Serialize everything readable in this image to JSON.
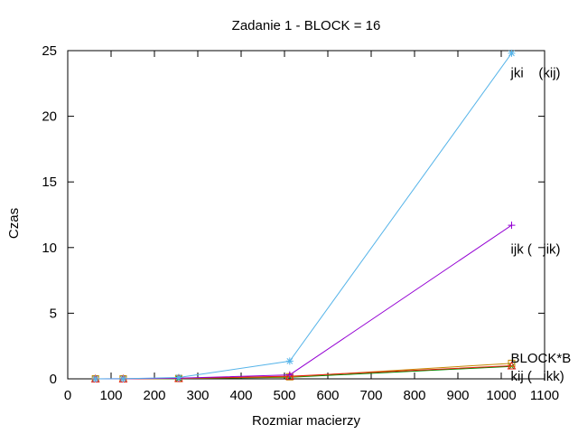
{
  "chart_data": {
    "type": "line",
    "title": "Zadanie 1 - BLOCK = 16",
    "xlabel": "Rozmiar macierzy",
    "ylabel": "Czas",
    "xlim": [
      0,
      1100
    ],
    "ylim": [
      0,
      25
    ],
    "xticks": [
      0,
      100,
      200,
      300,
      400,
      500,
      600,
      700,
      800,
      900,
      1000,
      1100
    ],
    "yticks": [
      0,
      5,
      10,
      15,
      20,
      25
    ],
    "grid": false,
    "series": [
      {
        "color": "#008b00",
        "marker": "x",
        "x": [
          64,
          128,
          256,
          512,
          1024
        ],
        "values": [
          0.0,
          0.0,
          0.02,
          0.12,
          0.95
        ]
      },
      {
        "color": "#c48800",
        "marker": "square",
        "x": [
          64,
          128,
          256,
          512,
          1024
        ],
        "values": [
          0.0,
          0.0,
          0.03,
          0.16,
          1.18
        ]
      },
      {
        "color": "#e51e10",
        "marker": "triangle",
        "x": [
          64,
          128,
          256,
          512,
          1024
        ],
        "values": [
          0.0,
          0.0,
          0.04,
          0.2,
          1.0
        ]
      },
      {
        "color": "#9400d3",
        "marker": "plus",
        "x": [
          64,
          128,
          256,
          512,
          1024
        ],
        "values": [
          0.0,
          0.01,
          0.05,
          0.3,
          11.7
        ]
      },
      {
        "color": "#56b4e9",
        "marker": "star",
        "x": [
          64,
          128,
          256,
          512,
          1024
        ],
        "values": [
          0.0,
          0.01,
          0.1,
          1.35,
          24.8
        ]
      }
    ],
    "annotations": [
      {
        "text": "jki    (kij)",
        "x": 1022,
        "y": 23.3
      },
      {
        "text": "ijk (   jik)",
        "x": 1022,
        "y": 9.9
      },
      {
        "text": "BLOCK*B",
        "x": 1022,
        "y": 1.6
      },
      {
        "text": "kij (   ikk)",
        "x": 1022,
        "y": 0.2
      }
    ]
  }
}
